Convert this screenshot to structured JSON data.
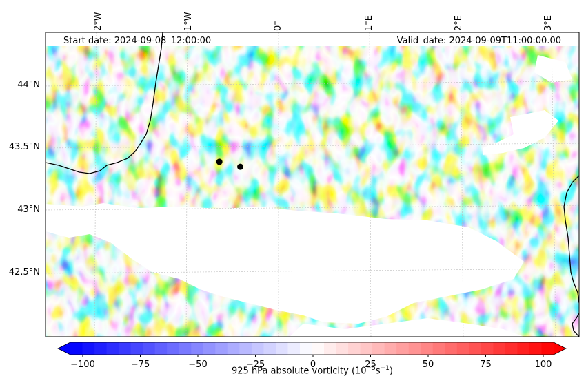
{
  "map": {
    "start_date": "Start date: 2024-09-08_12:00:00",
    "valid_date": "Valid_date: 2024-09-09T11:00:00.00",
    "field_title": "925 hPa absolute vorticity",
    "units_text": "(10",
    "units_exponent": "−5",
    "units_rest": "s",
    "units_exponent2": "−1",
    "units_close": ")",
    "lon_ticks": [
      "2°W",
      "1°W",
      "0°",
      "1°E",
      "2°E",
      "3°E"
    ],
    "lat_ticks": [
      "44°N",
      "43.5°N",
      "43°N",
      "42.5°N"
    ],
    "markers": [
      {
        "name": "station-marker-1",
        "lon": -0.65,
        "lat": 43.39
      },
      {
        "name": "station-marker-2",
        "lon": -0.42,
        "lat": 43.35
      }
    ]
  },
  "colorbar": {
    "ticks": [
      "−100",
      "−75",
      "−50",
      "−25",
      "0",
      "25",
      "50",
      "75",
      "100"
    ],
    "min": -100,
    "max": 100,
    "colors": {
      "negative": "#0000ff",
      "zero": "#ffffff",
      "positive": "#ff0000"
    }
  },
  "colors": {
    "coastline": "#000000",
    "masked": "#ffffff",
    "grid": "#bbbbbb"
  }
}
